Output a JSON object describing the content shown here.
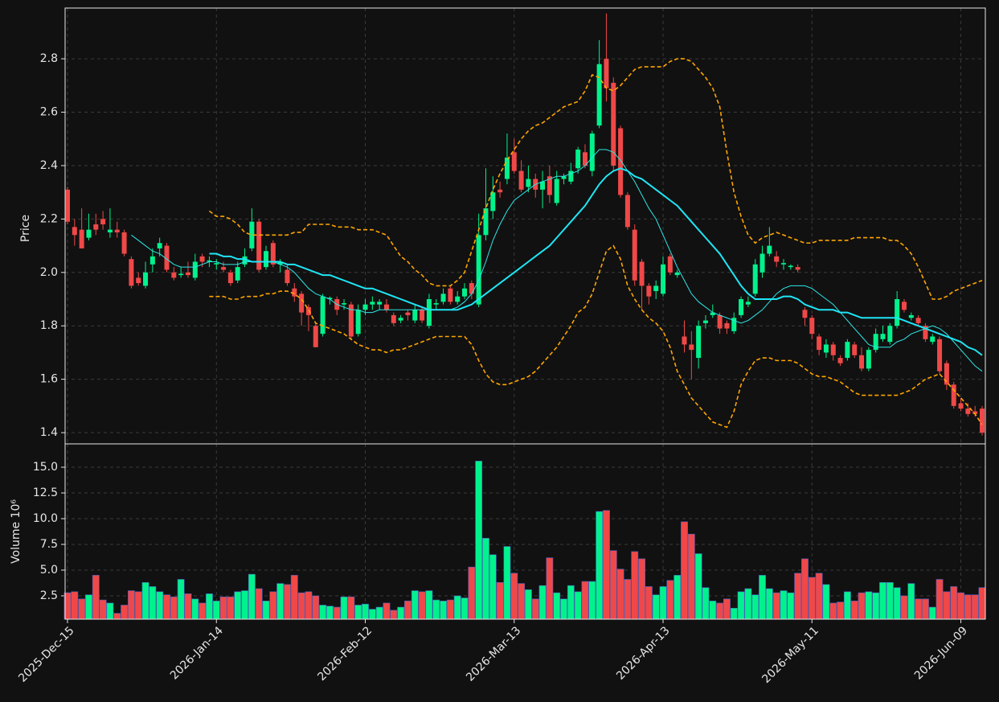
{
  "chart_data": {
    "type": "candlestick",
    "ylabel": "Price",
    "y2label": "Volume  10⁶",
    "categories": [
      "2025-Dec-15",
      null,
      null,
      null,
      null,
      null,
      null,
      null,
      null,
      null,
      null,
      null,
      null,
      null,
      null,
      null,
      null,
      null,
      null,
      null,
      null,
      "2026-Jan-14",
      null,
      null,
      null,
      null,
      null,
      null,
      null,
      null,
      null,
      null,
      null,
      null,
      null,
      null,
      null,
      null,
      null,
      null,
      null,
      null,
      "2026-Feb-12",
      null,
      null,
      null,
      null,
      null,
      null,
      null,
      null,
      null,
      null,
      null,
      null,
      null,
      null,
      null,
      null,
      null,
      null,
      null,
      null,
      "2026-Mar-13",
      null,
      null,
      null,
      null,
      null,
      null,
      null,
      null,
      null,
      null,
      null,
      null,
      null,
      null,
      null,
      null,
      null,
      null,
      null,
      null,
      "2026-Apr-13",
      null,
      null,
      null,
      null,
      null,
      null,
      null,
      null,
      null,
      null,
      null,
      null,
      null,
      null,
      null,
      null,
      null,
      null,
      null,
      null,
      "2026-May-11",
      null,
      null,
      null,
      null,
      null,
      null,
      null,
      null,
      null,
      null,
      null,
      null,
      null,
      null,
      null,
      null,
      null,
      null,
      null,
      null,
      "2026-Jun-09",
      null,
      null,
      null
    ],
    "open": [
      2.31,
      2.17,
      2.16,
      2.13,
      2.18,
      2.2,
      2.15,
      2.16,
      2.15,
      2.05,
      1.98,
      1.95,
      2.03,
      2.09,
      2.1,
      2.0,
      1.99,
      2.0,
      1.98,
      2.06,
      2.04,
      2.03,
      2.02,
      2.0,
      1.97,
      2.03,
      2.09,
      2.19,
      2.02,
      2.11,
      2.03,
      2.01,
      1.94,
      1.92,
      1.87,
      1.8,
      1.77,
      1.9,
      1.9,
      1.88,
      1.88,
      1.77,
      1.86,
      1.88,
      1.88,
      1.88,
      1.84,
      1.82,
      1.85,
      1.82,
      1.86,
      1.8,
      1.88,
      1.89,
      1.94,
      1.89,
      1.91,
      1.96,
      1.88,
      2.14,
      2.23,
      2.31,
      2.35,
      2.45,
      2.38,
      2.32,
      2.35,
      2.31,
      2.36,
      2.26,
      2.35,
      2.34,
      2.39,
      2.45,
      2.38,
      2.55,
      2.8,
      2.71,
      2.54,
      2.29,
      2.16,
      2.04,
      1.95,
      1.93,
      1.92,
      2.06,
      1.99,
      1.76,
      1.73,
      1.68,
      1.81,
      1.84,
      1.84,
      1.81,
      1.78,
      1.84,
      1.88,
      1.92,
      2.0,
      2.07,
      2.06,
      2.03,
      2.02,
      2.02,
      1.86,
      1.83,
      1.76,
      1.7,
      1.73,
      1.68,
      1.68,
      1.73,
      1.69,
      1.64,
      1.71,
      1.75,
      1.74,
      1.8,
      1.89,
      1.83,
      1.83,
      1.8,
      1.74,
      1.75,
      1.66,
      1.58,
      1.51,
      1.49,
      1.48,
      1.49
    ],
    "high": [
      2.32,
      2.2,
      2.24,
      2.22,
      2.22,
      2.23,
      2.24,
      2.19,
      2.16,
      2.06,
      2.0,
      2.04,
      2.09,
      2.13,
      2.11,
      2.02,
      2.02,
      2.04,
      2.07,
      2.07,
      2.06,
      2.05,
      2.04,
      2.01,
      2.04,
      2.09,
      2.24,
      2.2,
      2.1,
      2.12,
      2.05,
      2.03,
      1.96,
      1.93,
      1.88,
      1.81,
      1.92,
      1.91,
      1.91,
      1.9,
      1.89,
      1.88,
      1.9,
      1.91,
      1.9,
      1.9,
      1.85,
      1.84,
      1.86,
      1.88,
      1.87,
      1.92,
      1.9,
      1.94,
      1.95,
      1.93,
      1.96,
      1.97,
      2.22,
      2.39,
      2.36,
      2.34,
      2.52,
      2.5,
      2.42,
      2.4,
      2.37,
      2.38,
      2.4,
      2.38,
      2.37,
      2.41,
      2.47,
      2.48,
      2.53,
      2.87,
      2.97,
      2.73,
      2.55,
      2.3,
      2.18,
      2.05,
      1.96,
      1.97,
      2.06,
      2.07,
      2.01,
      1.82,
      1.78,
      1.82,
      1.84,
      1.88,
      1.85,
      1.82,
      1.85,
      1.91,
      1.91,
      2.05,
      2.1,
      2.17,
      2.08,
      2.05,
      2.03,
      2.03,
      1.87,
      1.84,
      1.77,
      1.75,
      1.74,
      1.69,
      1.75,
      1.74,
      1.72,
      1.72,
      1.79,
      1.8,
      1.81,
      1.93,
      1.9,
      1.85,
      1.84,
      1.81,
      1.77,
      1.76,
      1.67,
      1.59,
      1.53,
      1.51,
      1.5,
      1.5
    ],
    "low": [
      2.18,
      2.1,
      2.09,
      2.12,
      2.14,
      2.16,
      2.13,
      2.13,
      2.06,
      1.94,
      1.95,
      1.94,
      2.0,
      2.06,
      2.0,
      1.97,
      1.98,
      1.98,
      1.97,
      2.02,
      2.02,
      2.01,
      2.0,
      1.95,
      1.96,
      2.02,
      2.08,
      2.0,
      2.01,
      2.02,
      2.0,
      1.95,
      1.89,
      1.8,
      1.78,
      1.72,
      1.76,
      1.88,
      1.84,
      1.86,
      1.75,
      1.76,
      1.84,
      1.86,
      1.86,
      1.85,
      1.8,
      1.81,
      1.82,
      1.81,
      1.81,
      1.79,
      1.86,
      1.88,
      1.88,
      1.88,
      1.9,
      1.9,
      1.87,
      2.12,
      2.2,
      2.28,
      2.33,
      2.37,
      2.3,
      2.3,
      2.28,
      2.24,
      2.26,
      2.25,
      2.33,
      2.33,
      2.37,
      2.39,
      2.36,
      2.54,
      2.64,
      2.38,
      2.28,
      2.16,
      1.95,
      1.86,
      1.88,
      1.9,
      1.91,
      1.99,
      1.98,
      1.7,
      1.6,
      1.64,
      1.79,
      1.83,
      1.77,
      1.77,
      1.77,
      1.83,
      1.87,
      1.91,
      1.98,
      2.06,
      2.02,
      2.01,
      2.01,
      2.0,
      1.8,
      1.75,
      1.69,
      1.68,
      1.67,
      1.65,
      1.67,
      1.68,
      1.63,
      1.63,
      1.7,
      1.74,
      1.73,
      1.79,
      1.85,
      1.82,
      1.8,
      1.74,
      1.73,
      1.62,
      1.56,
      1.49,
      1.48,
      1.46,
      1.46,
      1.39
    ],
    "close": [
      2.19,
      2.14,
      2.09,
      2.16,
      2.16,
      2.18,
      2.16,
      2.15,
      2.07,
      1.95,
      1.96,
      2.0,
      2.06,
      2.11,
      2.01,
      1.98,
      1.995,
      1.99,
      2.04,
      2.04,
      2.045,
      2.035,
      2.01,
      1.96,
      2.02,
      2.06,
      2.19,
      2.01,
      2.08,
      2.03,
      2.04,
      1.96,
      1.91,
      1.85,
      1.84,
      1.72,
      1.91,
      1.905,
      1.86,
      1.885,
      1.76,
      1.86,
      1.88,
      1.89,
      1.89,
      1.86,
      1.81,
      1.83,
      1.84,
      1.86,
      1.82,
      1.9,
      1.885,
      1.92,
      1.89,
      1.91,
      1.94,
      1.92,
      2.14,
      2.24,
      2.3,
      2.3,
      2.43,
      2.38,
      2.31,
      2.35,
      2.31,
      2.34,
      2.29,
      2.35,
      2.36,
      2.38,
      2.46,
      2.4,
      2.52,
      2.78,
      2.69,
      2.4,
      2.29,
      2.17,
      1.97,
      1.95,
      1.91,
      1.95,
      2.03,
      2.0,
      2.0,
      1.73,
      1.71,
      1.8,
      1.82,
      1.85,
      1.79,
      1.79,
      1.83,
      1.9,
      1.89,
      2.03,
      2.07,
      2.1,
      2.04,
      2.035,
      2.025,
      2.01,
      1.83,
      1.77,
      1.71,
      1.73,
      1.69,
      1.66,
      1.74,
      1.69,
      1.64,
      1.71,
      1.77,
      1.77,
      1.8,
      1.9,
      1.86,
      1.84,
      1.81,
      1.75,
      1.76,
      1.63,
      1.58,
      1.5,
      1.49,
      1.47,
      1.47,
      1.4
    ],
    "volume": [
      2.8,
      2.9,
      2.2,
      2.6,
      4.5,
      2.1,
      1.8,
      0.8,
      1.6,
      3.0,
      2.9,
      3.8,
      3.4,
      2.9,
      2.6,
      2.4,
      4.1,
      2.7,
      2.2,
      1.8,
      2.7,
      2.0,
      2.4,
      2.4,
      2.9,
      3.0,
      4.6,
      3.2,
      2.0,
      2.9,
      3.7,
      3.6,
      4.5,
      2.8,
      2.9,
      2.5,
      1.6,
      1.5,
      1.4,
      2.4,
      2.4,
      1.6,
      1.7,
      1.2,
      1.4,
      1.8,
      1.1,
      1.4,
      2.0,
      3.0,
      2.9,
      3.0,
      2.1,
      2.0,
      2.1,
      2.5,
      2.3,
      5.3,
      15.6,
      8.1,
      6.5,
      3.8,
      7.3,
      4.7,
      3.7,
      3.1,
      2.2,
      3.5,
      6.2,
      2.8,
      2.2,
      3.5,
      2.9,
      3.9,
      3.9,
      10.7,
      10.8,
      6.9,
      5.1,
      4.1,
      6.8,
      6.1,
      3.4,
      2.6,
      3.4,
      4.0,
      4.5,
      9.7,
      8.5,
      6.6,
      3.3,
      2.0,
      1.8,
      2.2,
      1.3,
      2.9,
      3.2,
      2.6,
      4.5,
      3.2,
      2.8,
      3.0,
      2.8,
      4.7,
      6.1,
      4.3,
      4.7,
      3.6,
      1.8,
      1.9,
      2.9,
      2.0,
      2.8,
      2.9,
      2.8,
      3.8,
      3.8,
      3.3,
      2.5,
      3.7,
      2.2,
      2.2,
      1.4,
      4.1,
      2.9,
      3.4,
      2.8,
      2.6,
      2.6,
      3.3
    ],
    "up_color": "#00f28c",
    "down_color": "#f04848",
    "overlays": [
      {
        "style": "thin",
        "color": "#2ee6e6",
        "values": [
          null,
          null,
          null,
          null,
          null,
          null,
          null,
          null,
          null,
          2.14,
          2.12,
          2.1,
          2.08,
          2.07,
          2.05,
          2.03,
          2.02,
          2.02,
          2.02,
          2.03,
          2.04,
          2.04,
          2.03,
          2.03,
          2.03,
          2.04,
          2.04,
          2.04,
          2.04,
          2.04,
          2.03,
          2.02,
          2.0,
          1.97,
          1.94,
          1.92,
          1.91,
          1.9,
          1.88,
          1.87,
          1.86,
          1.86,
          1.85,
          1.85,
          1.86,
          1.86,
          1.86,
          1.86,
          1.86,
          1.86,
          1.86,
          1.86,
          1.86,
          1.86,
          1.86,
          1.87,
          1.89,
          1.92,
          1.97,
          2.04,
          2.12,
          2.18,
          2.23,
          2.27,
          2.29,
          2.31,
          2.33,
          2.34,
          2.35,
          2.36,
          2.36,
          2.37,
          2.38,
          2.4,
          2.43,
          2.46,
          2.46,
          2.45,
          2.42,
          2.38,
          2.34,
          2.29,
          2.24,
          2.2,
          2.14,
          2.08,
          2.02,
          1.97,
          1.92,
          1.89,
          1.87,
          1.85,
          1.84,
          1.83,
          1.82,
          1.81,
          1.82,
          1.84,
          1.86,
          1.89,
          1.92,
          1.94,
          1.95,
          1.95,
          1.95,
          1.94,
          1.92,
          1.9,
          1.88,
          1.85,
          1.82,
          1.79,
          1.76,
          1.73,
          1.72,
          1.72,
          1.72,
          1.74,
          1.75,
          1.77,
          1.78,
          1.79,
          1.8,
          1.79,
          1.77,
          1.74,
          1.71,
          1.68,
          1.65,
          1.63
        ]
      },
      {
        "style": "thick",
        "color": "#1fe5f5",
        "values": [
          null,
          null,
          null,
          null,
          null,
          null,
          null,
          null,
          null,
          null,
          null,
          null,
          null,
          null,
          null,
          null,
          null,
          null,
          null,
          null,
          2.07,
          2.07,
          2.06,
          2.06,
          2.05,
          2.05,
          2.04,
          2.04,
          2.04,
          2.04,
          2.04,
          2.03,
          2.03,
          2.02,
          2.01,
          2.0,
          1.99,
          1.99,
          1.98,
          1.97,
          1.96,
          1.95,
          1.94,
          1.94,
          1.93,
          1.92,
          1.91,
          1.9,
          1.89,
          1.88,
          1.87,
          1.86,
          1.86,
          1.86,
          1.86,
          1.86,
          1.87,
          1.88,
          1.9,
          1.92,
          1.94,
          1.96,
          1.98,
          2.0,
          2.02,
          2.04,
          2.06,
          2.08,
          2.1,
          2.13,
          2.16,
          2.19,
          2.22,
          2.25,
          2.29,
          2.33,
          2.36,
          2.38,
          2.39,
          2.38,
          2.36,
          2.35,
          2.33,
          2.31,
          2.29,
          2.27,
          2.25,
          2.22,
          2.19,
          2.16,
          2.13,
          2.1,
          2.07,
          2.03,
          1.99,
          1.95,
          1.92,
          1.9,
          1.9,
          1.9,
          1.9,
          1.91,
          1.91,
          1.9,
          1.88,
          1.87,
          1.86,
          1.86,
          1.86,
          1.85,
          1.85,
          1.84,
          1.83,
          1.83,
          1.83,
          1.83,
          1.83,
          1.83,
          1.82,
          1.81,
          1.8,
          1.79,
          1.78,
          1.77,
          1.76,
          1.75,
          1.74,
          1.72,
          1.71,
          1.69
        ]
      },
      {
        "style": "dashed",
        "color": "#ffa500",
        "values": [
          null,
          null,
          null,
          null,
          null,
          null,
          null,
          null,
          null,
          null,
          null,
          null,
          null,
          null,
          null,
          null,
          null,
          null,
          null,
          null,
          2.23,
          2.21,
          2.21,
          2.2,
          2.18,
          2.15,
          2.14,
          2.14,
          2.14,
          2.14,
          2.14,
          2.14,
          2.15,
          2.15,
          2.18,
          2.18,
          2.18,
          2.18,
          2.17,
          2.17,
          2.17,
          2.16,
          2.16,
          2.16,
          2.15,
          2.14,
          2.1,
          2.06,
          2.04,
          2.01,
          1.99,
          1.96,
          1.95,
          1.95,
          1.95,
          1.97,
          2.0,
          2.08,
          2.16,
          2.24,
          2.31,
          2.37,
          2.42,
          2.46,
          2.5,
          2.53,
          2.55,
          2.56,
          2.58,
          2.6,
          2.62,
          2.63,
          2.64,
          2.68,
          2.74,
          2.73,
          2.69,
          2.68,
          2.7,
          2.73,
          2.76,
          2.77,
          2.77,
          2.77,
          2.77,
          2.79,
          2.8,
          2.8,
          2.79,
          2.76,
          2.73,
          2.69,
          2.62,
          2.45,
          2.3,
          2.21,
          2.14,
          2.11,
          2.13,
          2.14,
          2.15,
          2.14,
          2.13,
          2.12,
          2.11,
          2.11,
          2.12,
          2.12,
          2.12,
          2.12,
          2.12,
          2.13,
          2.13,
          2.13,
          2.13,
          2.13,
          2.12,
          2.12,
          2.1,
          2.07,
          2.02,
          1.96,
          1.9,
          1.9,
          1.91,
          1.93,
          1.94,
          1.95,
          1.96,
          1.97
        ]
      },
      {
        "style": "dashed",
        "color": "#ffa500",
        "values": [
          null,
          null,
          null,
          null,
          null,
          null,
          null,
          null,
          null,
          null,
          null,
          null,
          null,
          null,
          null,
          null,
          null,
          null,
          null,
          null,
          1.91,
          1.91,
          1.91,
          1.9,
          1.9,
          1.91,
          1.91,
          1.91,
          1.92,
          1.92,
          1.93,
          1.93,
          1.92,
          1.9,
          1.86,
          1.81,
          1.8,
          1.79,
          1.78,
          1.77,
          1.75,
          1.73,
          1.72,
          1.71,
          1.71,
          1.7,
          1.71,
          1.71,
          1.72,
          1.73,
          1.74,
          1.75,
          1.76,
          1.76,
          1.76,
          1.76,
          1.76,
          1.73,
          1.67,
          1.62,
          1.59,
          1.58,
          1.58,
          1.59,
          1.6,
          1.61,
          1.63,
          1.66,
          1.69,
          1.72,
          1.76,
          1.8,
          1.85,
          1.87,
          1.92,
          2.0,
          2.08,
          2.1,
          2.05,
          1.95,
          1.9,
          1.86,
          1.83,
          1.81,
          1.78,
          1.72,
          1.63,
          1.58,
          1.53,
          1.5,
          1.47,
          1.44,
          1.43,
          1.42,
          1.48,
          1.58,
          1.63,
          1.67,
          1.68,
          1.68,
          1.67,
          1.67,
          1.67,
          1.66,
          1.64,
          1.62,
          1.61,
          1.61,
          1.6,
          1.59,
          1.57,
          1.55,
          1.54,
          1.54,
          1.54,
          1.54,
          1.54,
          1.54,
          1.55,
          1.56,
          1.58,
          1.6,
          1.61,
          1.62,
          1.59,
          1.56,
          1.53,
          1.5,
          1.47,
          1.43
        ]
      }
    ],
    "ylim": [
      1.358,
      2.99
    ],
    "yticks": [
      1.4,
      1.6,
      1.8,
      {
        "value": 2,
        "label": "2.0"
      },
      2.2,
      2.4,
      2.6,
      2.8
    ],
    "y2lim": [
      0.23,
      17.27
    ],
    "y2ticks": [
      2.5,
      {
        "value": 5,
        "label": "5.0"
      },
      7.5,
      {
        "value": 10,
        "label": "10.0"
      },
      12.5,
      {
        "value": 15,
        "label": "15.0"
      }
    ],
    "grid": true
  }
}
